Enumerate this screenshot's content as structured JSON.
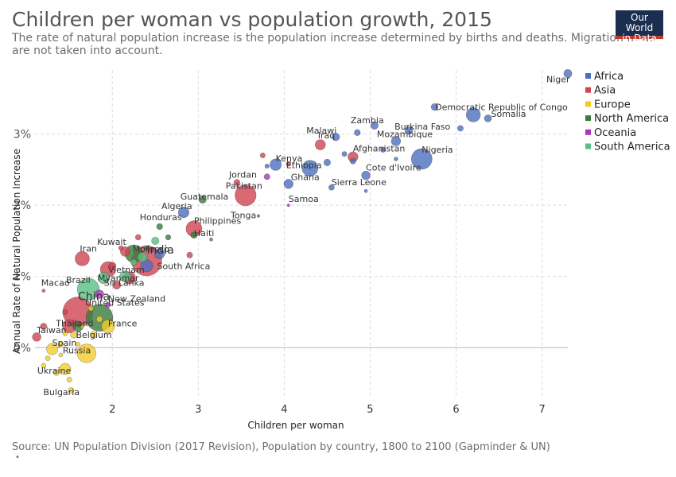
{
  "header": {
    "title": "Children per woman vs population growth, 2015",
    "subtitle": "The rate of natural population increase is the population increase determined by births and deaths. Migration flows are not taken into account."
  },
  "logo": {
    "line1": "Our World",
    "line2": "in Data"
  },
  "footer": {
    "source": "Source: UN Population Division (2017 Revision), Population by country, 1800 to 2100 (Gapminder & UN)",
    "dot": "•"
  },
  "chart_data": {
    "type": "scatter",
    "title": "Children per woman vs population growth, 2015",
    "xlabel": "Children per woman",
    "ylabel": "Annual Rate of Natural Population Increase",
    "xlim": [
      1.1,
      7.3
    ],
    "ylim": [
      -0.7,
      3.9
    ],
    "xticks": [
      2,
      3,
      4,
      5,
      6,
      7
    ],
    "yticks": [
      0,
      1,
      2,
      3
    ],
    "ytick_labels": [
      "0%",
      "1%",
      "2%",
      "3%"
    ],
    "grid": true,
    "legend_position": "right",
    "region_colors": {
      "Africa": "#4c6fbf",
      "Asia": "#d0434f",
      "Europe": "#f2cd2a",
      "North America": "#3a7a3d",
      "Oceania": "#a639b8",
      "South America": "#57c185"
    },
    "series": [
      {
        "name": "Africa",
        "points": [
          {
            "label": "Niger",
            "x": 7.3,
            "y": 3.85,
            "pop": 20
          },
          {
            "label": "Somalia",
            "x": 6.37,
            "y": 3.22,
            "pop": 14
          },
          {
            "label": "Democratic Republic of Congo",
            "x": 6.2,
            "y": 3.27,
            "pop": 77
          },
          {
            "label": "Burkina Faso",
            "x": 5.45,
            "y": 3.05,
            "pop": 18
          },
          {
            "label": "Mozambique",
            "x": 5.3,
            "y": 2.9,
            "pop": 28
          },
          {
            "label": "Zambia",
            "x": 5.05,
            "y": 3.12,
            "pop": 16
          },
          {
            "label": "Malawi",
            "x": 4.6,
            "y": 2.96,
            "pop": 17
          },
          {
            "label": "Nigeria",
            "x": 5.6,
            "y": 2.65,
            "pop": 181
          },
          {
            "label": "Cote d'Ivoire",
            "x": 4.95,
            "y": 2.42,
            "pop": 23
          },
          {
            "label": "Ethiopia",
            "x": 4.3,
            "y": 2.52,
            "pop": 100
          },
          {
            "label": "Kenya",
            "x": 3.9,
            "y": 2.57,
            "pop": 47
          },
          {
            "label": "Ghana",
            "x": 4.05,
            "y": 2.3,
            "pop": 28
          },
          {
            "label": "Sierra Leone",
            "x": 4.55,
            "y": 2.25,
            "pop": 7
          },
          {
            "label": "Algeria",
            "x": 2.83,
            "y": 1.9,
            "pop": 40
          },
          {
            "label": "Morocco",
            "x": 2.55,
            "y": 1.32,
            "pop": 35
          },
          {
            "label": "South Africa",
            "x": 2.4,
            "y": 1.15,
            "pop": 55
          },
          {
            "label": "",
            "x": 5.75,
            "y": 3.38,
            "pop": 13
          },
          {
            "label": "",
            "x": 6.05,
            "y": 3.08,
            "pop": 8
          },
          {
            "label": "",
            "x": 4.85,
            "y": 3.02,
            "pop": 9
          },
          {
            "label": "",
            "x": 5.15,
            "y": 2.78,
            "pop": 6
          },
          {
            "label": "",
            "x": 4.7,
            "y": 2.72,
            "pop": 5
          },
          {
            "label": "",
            "x": 4.5,
            "y": 2.6,
            "pop": 12
          },
          {
            "label": "",
            "x": 4.8,
            "y": 2.62,
            "pop": 8
          },
          {
            "label": "",
            "x": 3.8,
            "y": 2.55,
            "pop": 3
          },
          {
            "label": "",
            "x": 4.95,
            "y": 2.2,
            "pop": 1
          },
          {
            "label": "",
            "x": 5.3,
            "y": 2.65,
            "pop": 2
          }
        ]
      },
      {
        "name": "Asia",
        "points": [
          {
            "label": "Iraq",
            "x": 4.42,
            "y": 2.85,
            "pop": 36
          },
          {
            "label": "Afghanistan",
            "x": 4.8,
            "y": 2.68,
            "pop": 34
          },
          {
            "label": "Jordan",
            "x": 3.45,
            "y": 2.32,
            "pop": 9
          },
          {
            "label": "Pakistan",
            "x": 3.55,
            "y": 2.14,
            "pop": 189
          },
          {
            "label": "Philippines",
            "x": 2.95,
            "y": 1.67,
            "pop": 101
          },
          {
            "label": "India",
            "x": 2.4,
            "y": 1.22,
            "pop": 1310
          },
          {
            "label": "Kuwait",
            "x": 2.1,
            "y": 1.4,
            "pop": 4
          },
          {
            "label": "Iran",
            "x": 1.65,
            "y": 1.25,
            "pop": 79
          },
          {
            "label": "Vietnam",
            "x": 1.95,
            "y": 1.1,
            "pop": 93
          },
          {
            "label": "Myanmar",
            "x": 2.2,
            "y": 0.98,
            "pop": 53
          },
          {
            "label": "Sri Lanka",
            "x": 2.05,
            "y": 0.88,
            "pop": 21
          },
          {
            "label": "Macao",
            "x": 1.2,
            "y": 0.8,
            "pop": 1
          },
          {
            "label": "China",
            "x": 1.6,
            "y": 0.5,
            "pop": 1397
          },
          {
            "label": "Thailand",
            "x": 1.5,
            "y": 0.3,
            "pop": 68
          },
          {
            "label": "Taiwan",
            "x": 1.12,
            "y": 0.15,
            "pop": 23
          },
          {
            "label": "",
            "x": 2.3,
            "y": 1.55,
            "pop": 7
          },
          {
            "label": "",
            "x": 2.15,
            "y": 1.35,
            "pop": 31
          },
          {
            "label": "",
            "x": 2.0,
            "y": 1.15,
            "pop": 15
          },
          {
            "label": "",
            "x": 2.9,
            "y": 1.3,
            "pop": 8
          },
          {
            "label": "",
            "x": 3.75,
            "y": 2.7,
            "pop": 5
          },
          {
            "label": "",
            "x": 4.05,
            "y": 2.58,
            "pop": 4
          },
          {
            "label": "",
            "x": 1.2,
            "y": 0.3,
            "pop": 10
          },
          {
            "label": "",
            "x": 1.45,
            "y": 0.5,
            "pop": 5
          }
        ]
      },
      {
        "name": "Europe",
        "points": [
          {
            "label": "Belgium",
            "x": 1.78,
            "y": 0.18,
            "pop": 11
          },
          {
            "label": "Russia",
            "x": 1.7,
            "y": -0.08,
            "pop": 144
          },
          {
            "label": "Spain",
            "x": 1.3,
            "y": -0.02,
            "pop": 46
          },
          {
            "label": "Ukraine",
            "x": 1.45,
            "y": -0.3,
            "pop": 45
          },
          {
            "label": "Bulgaria",
            "x": 1.52,
            "y": -0.6,
            "pop": 7
          },
          {
            "label": "France",
            "x": 1.95,
            "y": 0.3,
            "pop": 64
          },
          {
            "label": "",
            "x": 1.55,
            "y": 0.18,
            "pop": 10
          },
          {
            "label": "",
            "x": 1.4,
            "y": 0.05,
            "pop": 6
          },
          {
            "label": "",
            "x": 1.25,
            "y": -0.15,
            "pop": 4
          },
          {
            "label": "",
            "x": 1.35,
            "y": -0.35,
            "pop": 8
          },
          {
            "label": "",
            "x": 1.5,
            "y": -0.45,
            "pop": 5
          },
          {
            "label": "",
            "x": 1.6,
            "y": 0.05,
            "pop": 3
          },
          {
            "label": "",
            "x": 1.85,
            "y": 0.4,
            "pop": 9
          },
          {
            "label": "",
            "x": 1.75,
            "y": 0.55,
            "pop": 5
          },
          {
            "label": "",
            "x": 1.45,
            "y": 0.2,
            "pop": 4
          },
          {
            "label": "",
            "x": 1.2,
            "y": -0.25,
            "pop": 3
          },
          {
            "label": "",
            "x": 1.65,
            "y": 0.3,
            "pop": 2
          },
          {
            "label": "",
            "x": 1.4,
            "y": -0.1,
            "pop": 2
          }
        ]
      },
      {
        "name": "North America",
        "points": [
          {
            "label": "Guatemala",
            "x": 3.05,
            "y": 2.08,
            "pop": 16
          },
          {
            "label": "Honduras",
            "x": 2.55,
            "y": 1.7,
            "pop": 9
          },
          {
            "label": "Haiti",
            "x": 2.95,
            "y": 1.58,
            "pop": 11
          },
          {
            "label": "United States",
            "x": 1.85,
            "y": 0.42,
            "pop": 320
          },
          {
            "label": "",
            "x": 2.25,
            "y": 1.32,
            "pop": 127
          },
          {
            "label": "",
            "x": 1.6,
            "y": 0.3,
            "pop": 36
          },
          {
            "label": "",
            "x": 2.65,
            "y": 1.55,
            "pop": 6
          },
          {
            "label": "",
            "x": 2.4,
            "y": 1.4,
            "pop": 4
          }
        ]
      },
      {
        "name": "Oceania",
        "points": [
          {
            "label": "Samoa",
            "x": 4.05,
            "y": 2.0,
            "pop": 0.2
          },
          {
            "label": "Tonga",
            "x": 3.7,
            "y": 1.85,
            "pop": 0.1
          },
          {
            "label": "New Zealand",
            "x": 1.95,
            "y": 0.6,
            "pop": 5
          },
          {
            "label": "",
            "x": 1.85,
            "y": 0.75,
            "pop": 24
          },
          {
            "label": "",
            "x": 3.8,
            "y": 2.4,
            "pop": 8
          },
          {
            "label": "",
            "x": 3.15,
            "y": 1.52,
            "pop": 1
          }
        ]
      },
      {
        "name": "South America",
        "points": [
          {
            "label": "Brazil",
            "x": 1.72,
            "y": 0.82,
            "pop": 205
          },
          {
            "label": "",
            "x": 2.25,
            "y": 1.2,
            "pop": 10
          },
          {
            "label": "",
            "x": 2.35,
            "y": 1.27,
            "pop": 31
          },
          {
            "label": "",
            "x": 2.5,
            "y": 1.5,
            "pop": 16
          },
          {
            "label": "",
            "x": 2.15,
            "y": 1.0,
            "pop": 43
          },
          {
            "label": "",
            "x": 1.9,
            "y": 0.98,
            "pop": 48
          }
        ]
      }
    ]
  }
}
